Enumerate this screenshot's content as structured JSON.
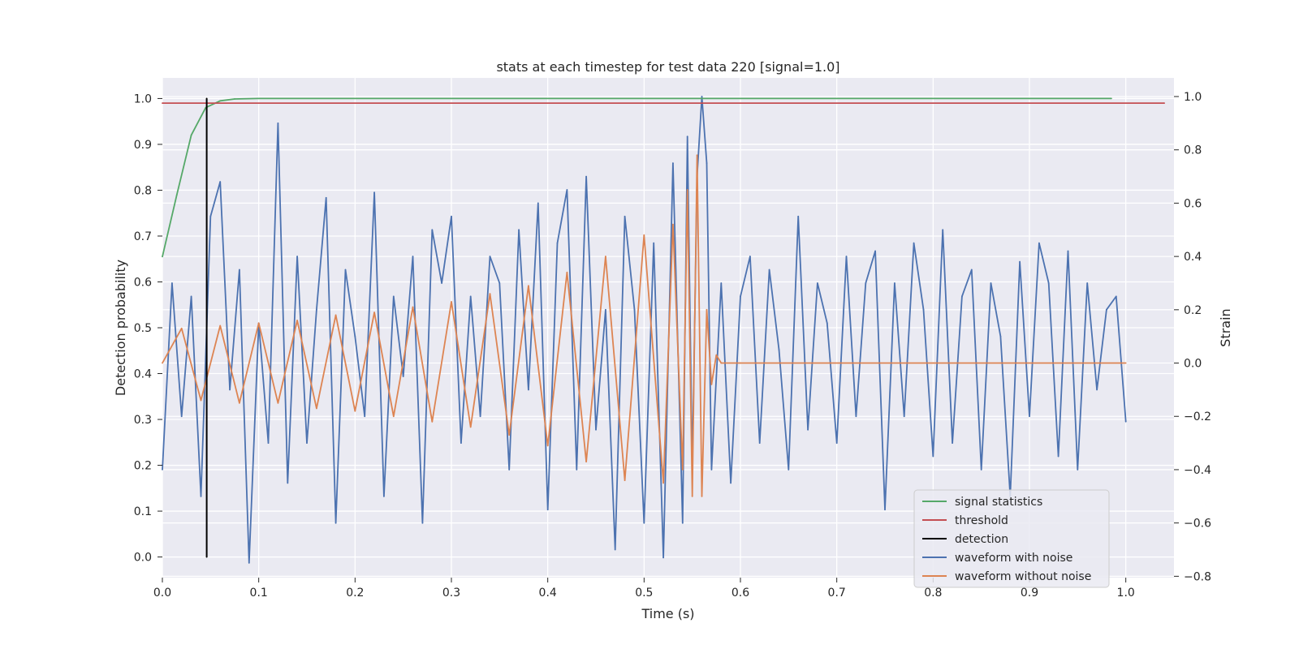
{
  "chart_data": {
    "type": "line",
    "title": "stats at each timestep for test data 220 [signal=1.0]",
    "xlabel": "Time (s)",
    "ylabel": "Detection probability",
    "y2label": "Strain",
    "xlim": [
      0.0,
      1.05
    ],
    "ylim": [
      -0.045,
      1.045
    ],
    "y2lim": [
      -0.805,
      1.07
    ],
    "x_ticks": [
      "0.0",
      "0.1",
      "0.2",
      "0.3",
      "0.4",
      "0.5",
      "0.6",
      "0.7",
      "0.8",
      "0.9",
      "1.0"
    ],
    "y_ticks": [
      "0.0",
      "0.1",
      "0.2",
      "0.3",
      "0.4",
      "0.5",
      "0.6",
      "0.7",
      "0.8",
      "0.9",
      "1.0"
    ],
    "y2_ticks": [
      "−0.8",
      "−0.6",
      "−0.4",
      "−0.2",
      "0.0",
      "0.2",
      "0.4",
      "0.6",
      "0.8",
      "1.0"
    ],
    "grid": true,
    "legend_position": "lower-right",
    "series": [
      {
        "name": "signal statistics",
        "color": "#55a868",
        "axis": "left",
        "x": [
          0.0,
          0.015,
          0.03,
          0.045,
          0.06,
          0.075,
          0.1,
          0.3,
          0.5,
          0.7,
          0.9,
          0.985
        ],
        "y": [
          0.655,
          0.79,
          0.92,
          0.98,
          0.995,
          0.999,
          1.0,
          1.0,
          1.0,
          1.0,
          1.0,
          1.0
        ]
      },
      {
        "name": "threshold",
        "color": "#c44e52",
        "axis": "left",
        "x": [
          0.0,
          1.04
        ],
        "y": [
          0.99,
          0.99
        ]
      },
      {
        "name": "detection",
        "color": "#000000",
        "axis": "left",
        "x": [
          0.046,
          0.046
        ],
        "y": [
          0.0,
          1.0
        ]
      },
      {
        "name": "waveform with noise",
        "color": "#4c72b0",
        "axis": "right",
        "x": [
          0.0,
          0.01,
          0.02,
          0.03,
          0.04,
          0.05,
          0.06,
          0.07,
          0.08,
          0.09,
          0.1,
          0.11,
          0.12,
          0.13,
          0.14,
          0.15,
          0.16,
          0.17,
          0.18,
          0.19,
          0.2,
          0.21,
          0.22,
          0.23,
          0.24,
          0.25,
          0.26,
          0.27,
          0.28,
          0.29,
          0.3,
          0.31,
          0.32,
          0.33,
          0.34,
          0.35,
          0.36,
          0.37,
          0.38,
          0.39,
          0.4,
          0.41,
          0.42,
          0.43,
          0.44,
          0.45,
          0.46,
          0.47,
          0.48,
          0.49,
          0.5,
          0.51,
          0.52,
          0.53,
          0.54,
          0.545,
          0.55,
          0.555,
          0.56,
          0.565,
          0.57,
          0.58,
          0.59,
          0.6,
          0.61,
          0.62,
          0.63,
          0.64,
          0.65,
          0.66,
          0.67,
          0.68,
          0.69,
          0.7,
          0.71,
          0.72,
          0.73,
          0.74,
          0.75,
          0.76,
          0.77,
          0.78,
          0.79,
          0.8,
          0.81,
          0.82,
          0.83,
          0.84,
          0.85,
          0.86,
          0.87,
          0.88,
          0.89,
          0.9,
          0.91,
          0.92,
          0.93,
          0.94,
          0.95,
          0.96,
          0.97,
          0.98,
          0.99,
          1.0
        ],
        "y": [
          -0.4,
          0.3,
          -0.2,
          0.25,
          -0.5,
          0.55,
          0.68,
          -0.1,
          0.35,
          -0.75,
          0.15,
          -0.3,
          0.9,
          -0.45,
          0.4,
          -0.3,
          0.2,
          0.62,
          -0.6,
          0.35,
          0.1,
          -0.2,
          0.64,
          -0.5,
          0.25,
          -0.05,
          0.4,
          -0.6,
          0.5,
          0.3,
          0.55,
          -0.3,
          0.25,
          -0.2,
          0.4,
          0.3,
          -0.4,
          0.5,
          -0.1,
          0.6,
          -0.55,
          0.45,
          0.65,
          -0.4,
          0.7,
          -0.25,
          0.2,
          -0.7,
          0.55,
          0.2,
          -0.6,
          0.45,
          -0.73,
          0.75,
          -0.6,
          0.85,
          -0.4,
          0.7,
          1.0,
          0.75,
          -0.4,
          0.3,
          -0.45,
          0.25,
          0.4,
          -0.3,
          0.35,
          0.05,
          -0.4,
          0.55,
          -0.25,
          0.3,
          0.15,
          -0.3,
          0.4,
          -0.2,
          0.3,
          0.42,
          -0.55,
          0.3,
          -0.2,
          0.45,
          0.2,
          -0.35,
          0.5,
          -0.3,
          0.25,
          0.35,
          -0.4,
          0.3,
          0.1,
          -0.5,
          0.38,
          -0.2,
          0.45,
          0.3,
          -0.35,
          0.42,
          -0.4,
          0.3,
          -0.1,
          0.2,
          0.25,
          -0.22
        ]
      },
      {
        "name": "waveform without noise",
        "color": "#dd8452",
        "axis": "right",
        "x": [
          0.0,
          0.02,
          0.04,
          0.06,
          0.08,
          0.1,
          0.12,
          0.14,
          0.16,
          0.18,
          0.2,
          0.22,
          0.24,
          0.26,
          0.28,
          0.3,
          0.32,
          0.34,
          0.36,
          0.38,
          0.4,
          0.42,
          0.44,
          0.46,
          0.48,
          0.5,
          0.52,
          0.53,
          0.54,
          0.545,
          0.55,
          0.555,
          0.56,
          0.565,
          0.57,
          0.575,
          0.58,
          0.6,
          0.8,
          1.0
        ],
        "y": [
          0.0,
          0.13,
          -0.14,
          0.14,
          -0.15,
          0.15,
          -0.15,
          0.16,
          -0.17,
          0.18,
          -0.18,
          0.19,
          -0.2,
          0.21,
          -0.22,
          0.23,
          -0.24,
          0.26,
          -0.27,
          0.29,
          -0.31,
          0.34,
          -0.37,
          0.4,
          -0.44,
          0.48,
          -0.45,
          0.52,
          -0.4,
          0.65,
          -0.5,
          0.78,
          -0.5,
          0.2,
          -0.08,
          0.03,
          0.0,
          0.0,
          0.0,
          0.0
        ]
      }
    ]
  }
}
